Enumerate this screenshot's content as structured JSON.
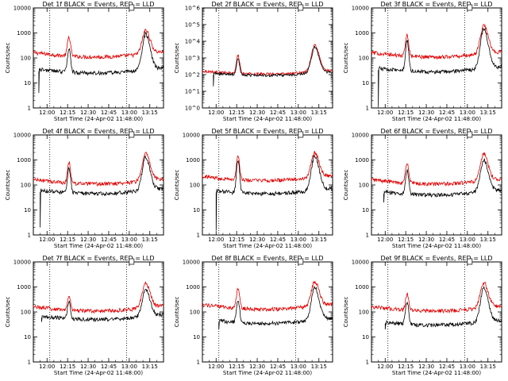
{
  "chart_data": {
    "type": "line",
    "x_tick_labels": [
      "12:00",
      "12:15",
      "12:30",
      "12:45",
      "13:00",
      "13:15"
    ],
    "x_tick_minutes": [
      0,
      15,
      30,
      45,
      60,
      75
    ],
    "xlim_minutes": [
      -10,
      85
    ],
    "xlabel": "Start Time (24-Apr-02 11:48:00)",
    "ylabel": "Counts/sec",
    "y_scale": "log",
    "vlines_minutes": [
      2,
      58
    ],
    "series_colors": {
      "black": "#000000",
      "red": "#e00000"
    },
    "panels": [
      {
        "title": "Det 1f BLACK = Events, RED = LLD",
        "ylim": [
          1,
          10000
        ],
        "y_tick_labels": [
          "1",
          "10",
          "100",
          "1000",
          "10000"
        ],
        "black": {
          "start": -6,
          "base": 25,
          "p1": 250,
          "p2": 900,
          "dip": 4
        },
        "red": {
          "start": -10,
          "base": 110,
          "p1": 700,
          "p2": 1300
        }
      },
      {
        "title": "Det 2f BLACK = Events, RED = LLD",
        "ylim": [
          1,
          1000000
        ],
        "y_tick_labels": [
          "10^0",
          "10^1",
          "10^2",
          "10^3",
          "10^4",
          "10^5",
          "10^6"
        ],
        "black": {
          "start": -2,
          "base": 90,
          "p1": 900,
          "p2": 4500,
          "dip": 20
        },
        "red": {
          "start": -10,
          "base": 110,
          "p1": 1500,
          "p2": 6000
        }
      },
      {
        "title": "Det 3f BLACK = Events, RED = LLD",
        "ylim": [
          1,
          10000
        ],
        "y_tick_labels": [
          "1",
          "10",
          "100",
          "1000",
          "10000"
        ],
        "black": {
          "start": -5,
          "base": 28,
          "p1": 500,
          "p2": 1500,
          "dip": 1.2
        },
        "red": {
          "start": -10,
          "base": 110,
          "p1": 900,
          "p2": 2000
        }
      },
      {
        "title": "Det 4f BLACK = Events, RED = LLD",
        "ylim": [
          1,
          10000
        ],
        "y_tick_labels": [
          "1",
          "10",
          "100",
          "1000",
          "10000"
        ],
        "black": {
          "start": -5,
          "base": 45,
          "p1": 500,
          "p2": 1300,
          "dip": 2
        },
        "red": {
          "start": -10,
          "base": 110,
          "p1": 800,
          "p2": 1800
        }
      },
      {
        "title": "Det 5f BLACK = Events, RED = LLD",
        "ylim": [
          1,
          10000
        ],
        "y_tick_labels": [
          "1",
          "10",
          "100",
          "1000",
          "10000"
        ],
        "black": {
          "start": 0,
          "base": 45,
          "p1": 1000,
          "p2": 1500,
          "dip": 1.5
        },
        "red": {
          "start": -10,
          "base": 150,
          "p1": 1400,
          "p2": 2000
        }
      },
      {
        "title": "Det 6f BLACK = Events, RED = LLD",
        "ylim": [
          1,
          10000
        ],
        "y_tick_labels": [
          "1",
          "10",
          "100",
          "1000",
          "10000"
        ],
        "black": {
          "start": -1,
          "base": 40,
          "p1": 400,
          "p2": 1000,
          "dip": 20
        },
        "red": {
          "start": -10,
          "base": 110,
          "p1": 800,
          "p2": 1700
        }
      },
      {
        "title": "Det 7f BLACK = Events, RED = LLD",
        "ylim": [
          1,
          10000
        ],
        "y_tick_labels": [
          "1",
          "10",
          "100",
          "1000",
          "10000"
        ],
        "black": {
          "start": -4,
          "base": 50,
          "p1": 250,
          "p2": 800,
          "dip": 40
        },
        "red": {
          "start": -10,
          "base": 110,
          "p1": 400,
          "p2": 1400
        }
      },
      {
        "title": "Det 8f BLACK = Events, RED = LLD",
        "ylim": [
          1,
          10000
        ],
        "y_tick_labels": [
          "1",
          "10",
          "100",
          "1000",
          "10000"
        ],
        "black": {
          "start": 2,
          "base": 35,
          "p1": 300,
          "p2": 1000,
          "dip": 20
        },
        "red": {
          "start": -10,
          "base": 130,
          "p1": 900,
          "p2": 1700
        }
      },
      {
        "title": "Det 9f BLACK = Events, RED = LLD",
        "ylim": [
          1,
          10000
        ],
        "y_tick_labels": [
          "1",
          "10",
          "100",
          "1000",
          "10000"
        ],
        "black": {
          "start": 0,
          "base": 30,
          "p1": 250,
          "p2": 900,
          "dip": 20
        },
        "red": {
          "start": -10,
          "base": 110,
          "p1": 500,
          "p2": 1500
        }
      }
    ]
  }
}
